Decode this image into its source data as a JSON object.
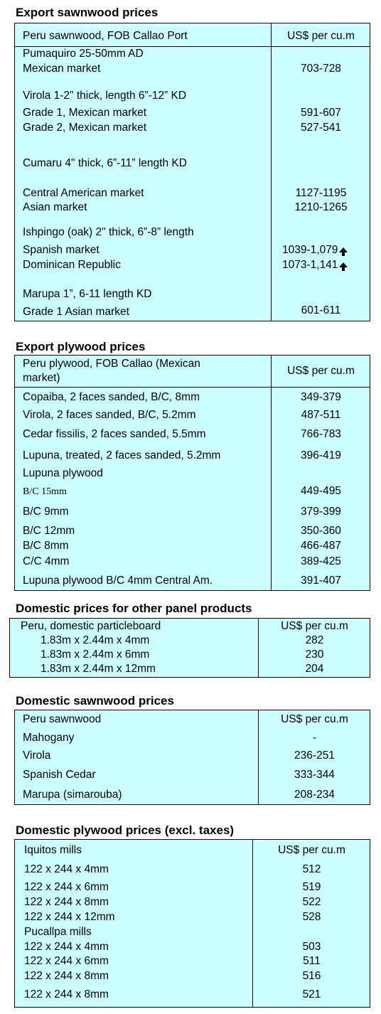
{
  "export_sawnwood": {
    "title": "Export sawnwood prices",
    "header": {
      "label": "Peru sawnwood, FOB Callao Port",
      "unit": "US$ per cu.m"
    },
    "rows": [
      {
        "label": "Pumaquiro 25-50mm AD",
        "value": ""
      },
      {
        "label": "Mexican market",
        "value": "703-728"
      },
      {
        "label": "Virola  1-2\" thick, length  6”-12” KD",
        "value": ""
      },
      {
        "label": "Grade 1, Mexican market",
        "value": "591-607"
      },
      {
        "label": "Grade 2, Mexican market",
        "value": "527-541"
      },
      {
        "label": "Cumaru 4\" thick, 6”-11” length KD",
        "value": ""
      },
      {
        "label": "Central American market",
        "value": "1127-1195"
      },
      {
        "label": "Asian market",
        "value": "1210-1265"
      },
      {
        "label": "Ishpingo (oak) 2\" thick, 6”-8” length",
        "value": ""
      },
      {
        "label": "Spanish market",
        "value": "1039-1,079",
        "trend_icon": "up-arrow-icon"
      },
      {
        "label": "Dominican Republic",
        "value": "1073-1,141",
        "trend_icon": "up-arrow-icon"
      },
      {
        "label": "Marupa  1”, 6-11 length KD",
        "value": ""
      },
      {
        "label": "Grade 1 Asian market",
        "value": "601-611"
      }
    ]
  },
  "export_plywood": {
    "title": "Export plywood prices",
    "header": {
      "label_line1": "Peru plywood, FOB Callao (Mexican",
      "label_line2": "market)",
      "unit": "US$ per cu.m"
    },
    "rows": [
      {
        "label": "Copaiba, 2 faces sanded, B/C, 8mm",
        "value": "349-379"
      },
      {
        "label": "Virola, 2 faces sanded, B/C, 5.2mm",
        "value": "487-511"
      },
      {
        "label": "Cedar fissilis, 2 faces sanded, 5.5mm",
        "value": "766-783"
      },
      {
        "label": "Lupuna, treated, 2 faces sanded, 5.2mm",
        "value": "396-419"
      },
      {
        "label": "Lupuna plywood",
        "value": ""
      },
      {
        "label": "B/C 15mm",
        "value": "449-495"
      },
      {
        "label": "B/C 9mm",
        "value": "379-399"
      },
      {
        "label": "B/C 12mm",
        "value": "350-360"
      },
      {
        "label": "B/C 8mm",
        "value": "466-487"
      },
      {
        "label": "C/C 4mm",
        "value": "389-425"
      },
      {
        "label": "Lupuna plywood B/C 4mm Central Am.",
        "value": "391-407"
      }
    ]
  },
  "domestic_panel": {
    "title": "Domestic prices for other panel products",
    "header": {
      "label": "Peru, domestic particleboard",
      "unit": "US$ per cu.m"
    },
    "rows": [
      {
        "label": "1.83m x 2.44m x 4mm",
        "value": "282"
      },
      {
        "label": "1.83m x 2.44m x 6mm",
        "value": "230"
      },
      {
        "label": "1.83m x 2.44m x 12mm",
        "value": "204"
      }
    ]
  },
  "domestic_sawnwood": {
    "title": "Domestic sawnwood prices",
    "header": {
      "label": "Peru sawnwood",
      "unit": "US$ per cu.m"
    },
    "rows": [
      {
        "label": "Mahogany",
        "value": "-"
      },
      {
        "label": "Virola",
        "value": "236-251"
      },
      {
        "label": "Spanish Cedar",
        "value": "333-344"
      },
      {
        "label": "Marupa (simarouba)",
        "value": "208-234"
      }
    ]
  },
  "domestic_plywood": {
    "title": "Domestic plywood prices (excl. taxes)",
    "header": {
      "label": "Iquitos mills",
      "unit": "US$ per cu.m"
    },
    "rows": [
      {
        "label": "122 x 244 x 4mm",
        "value": "512"
      },
      {
        "label": "122 x 244 x 6mm",
        "value": "519"
      },
      {
        "label": "122 x 244 x 8mm",
        "value": "522"
      },
      {
        "label": "122 x 244 x 12mm",
        "value": "528"
      },
      {
        "label": "Pucallpa mills",
        "value": ""
      },
      {
        "label": "122 x 244 x 4mm",
        "value": "503"
      },
      {
        "label": "122 x 244 x 6mm",
        "value": "511"
      },
      {
        "label": "122 x 244 x 8mm",
        "value": "516"
      },
      {
        "label": "122 x 244 x 8mm",
        "value": "521"
      }
    ]
  }
}
